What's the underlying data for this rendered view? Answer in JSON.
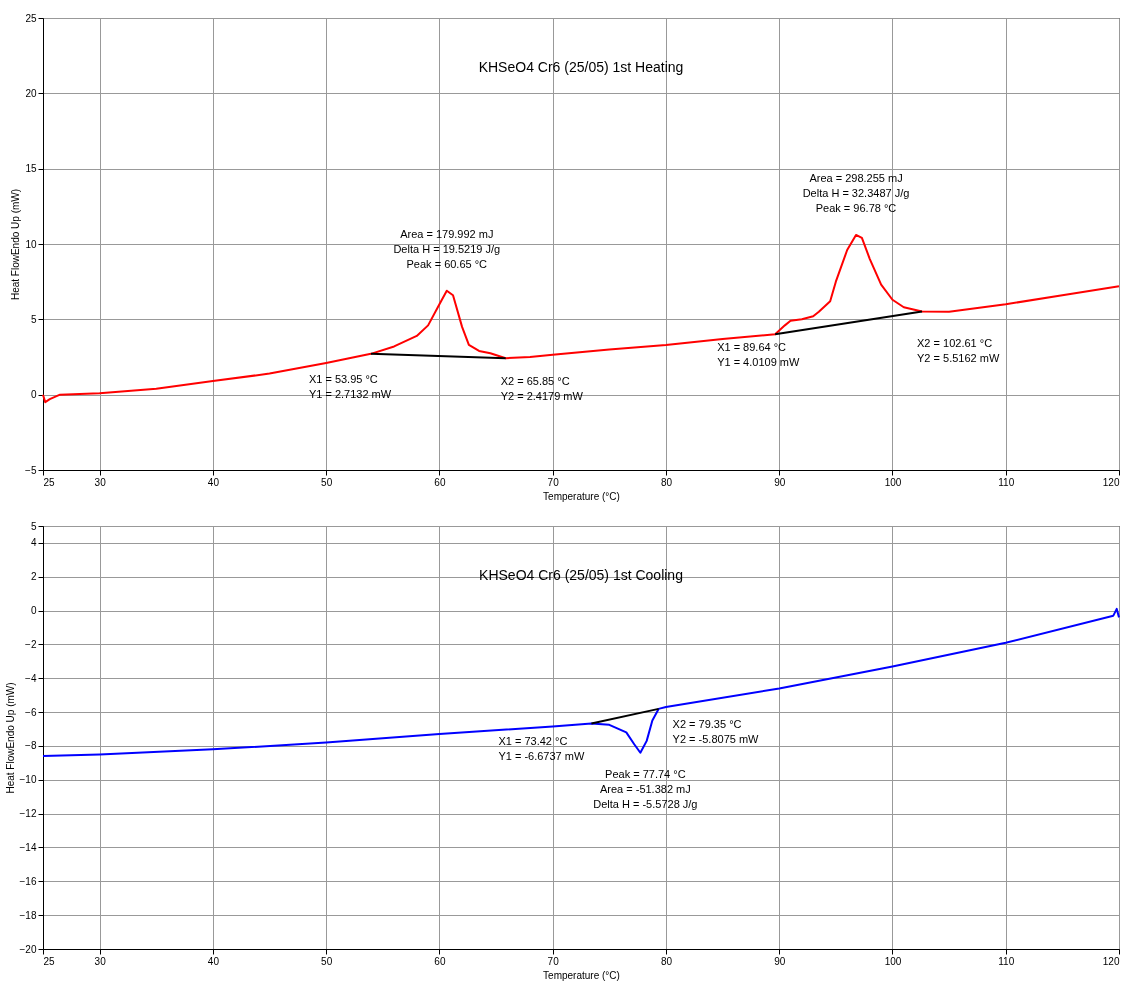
{
  "chart_data": [
    {
      "type": "line",
      "title": "KHSeO4 Cr6 (25/05) 1st Heating",
      "xlabel": "Temperature (°C)",
      "ylabel": "Heat FlowEndo Up (mW)",
      "xlim": [
        25,
        120
      ],
      "ylim": [
        -5,
        25
      ],
      "xticks": [
        25,
        30,
        40,
        50,
        60,
        70,
        80,
        90,
        100,
        110,
        120
      ],
      "yticks": [
        -5,
        0,
        5,
        10,
        15,
        20,
        25
      ],
      "grid": true,
      "series": [
        {
          "color": "#ff0000",
          "x": [
            25,
            25.2,
            25.6,
            26.5,
            30,
            35,
            40,
            45,
            50,
            53.95,
            56,
            58,
            59,
            60,
            60.65,
            61.2,
            62,
            62.6,
            63.5,
            64.5,
            65.85,
            68,
            70,
            75,
            80,
            85,
            89.64,
            90.5,
            91,
            92,
            93,
            93.5,
            94.5,
            95,
            96,
            96.78,
            97.3,
            98,
            99,
            100,
            101,
            102.61,
            105,
            110,
            115,
            120
          ],
          "values": [
            0,
            -0.5,
            -0.3,
            0,
            0.1,
            0.4,
            0.9,
            1.4,
            2.1,
            2.71,
            3.2,
            3.9,
            4.6,
            6,
            6.9,
            6.6,
            4.5,
            3.3,
            2.9,
            2.75,
            2.42,
            2.5,
            2.65,
            3,
            3.3,
            3.7,
            4.01,
            4.6,
            4.9,
            5,
            5.2,
            5.5,
            6.2,
            7.5,
            9.6,
            10.6,
            10.4,
            9,
            7.3,
            6.3,
            5.8,
            5.52,
            5.5,
            6,
            6.6,
            7.2
          ]
        },
        {
          "type": "line",
          "color": "#000000",
          "x": [
            53.95,
            65.85
          ],
          "values": [
            2.7132,
            2.4179
          ]
        },
        {
          "type": "line",
          "color": "#000000",
          "x": [
            89.64,
            102.61
          ],
          "values": [
            4.0109,
            5.5162
          ]
        }
      ],
      "annotations": [
        {
          "text": "Area = 179.992 mJ\nDelta H = 19.5219 J/g\nPeak = 60.65 °C",
          "x": 60.65,
          "y": 6.9
        },
        {
          "text": "X1 = 53.95 °C\nY1 = 2.7132 mW",
          "x": 53.95,
          "y": 2.7132
        },
        {
          "text": "X2 = 65.85 °C\nY2 = 2.4179 mW",
          "x": 65.85,
          "y": 2.4179
        },
        {
          "text": "Area = 298.255 mJ\nDelta H = 32.3487 J/g\nPeak = 96.78 °C",
          "x": 96.78,
          "y": 10.6
        },
        {
          "text": "X1 = 89.64 °C\nY1 = 4.0109 mW",
          "x": 89.64,
          "y": 4.0109
        },
        {
          "text": "X2 = 102.61 °C\nY2 = 5.5162 mW",
          "x": 102.61,
          "y": 5.5162
        }
      ]
    },
    {
      "type": "line",
      "title": "KHSeO4 Cr6 (25/05) 1st Cooling",
      "xlabel": "Temperature (°C)",
      "ylabel": "Heat FlowEndo Up (mW)",
      "xlim": [
        25,
        120
      ],
      "ylim": [
        -20,
        5
      ],
      "xticks": [
        25,
        30,
        40,
        50,
        60,
        70,
        80,
        90,
        100,
        110,
        120
      ],
      "yticks": [
        -20,
        -18,
        -16,
        -14,
        -12,
        -10,
        -8,
        -6,
        -4,
        -2,
        0,
        2,
        4,
        5
      ],
      "grid": true,
      "series": [
        {
          "color": "#0000ff",
          "x": [
            25,
            30,
            40,
            50,
            60,
            70,
            73.42,
            75,
            76.5,
            77.2,
            77.74,
            78.3,
            78.8,
            79.35,
            80,
            90,
            100,
            110,
            119.5,
            119.8,
            120
          ],
          "values": [
            -8.6,
            -8.5,
            -8.2,
            -7.8,
            -7.3,
            -6.85,
            -6.67,
            -6.75,
            -7.2,
            -7.9,
            -8.4,
            -7.7,
            -6.5,
            -5.81,
            -5.7,
            -4.6,
            -3.3,
            -1.9,
            -0.3,
            0.1,
            -0.4
          ]
        },
        {
          "type": "line",
          "color": "#000000",
          "x": [
            73.42,
            79.35
          ],
          "values": [
            -6.6737,
            -5.8075
          ]
        }
      ],
      "annotations": [
        {
          "text": "X1 = 73.42 °C\nY1 = -6.6737 mW",
          "x": 73.42,
          "y": -6.6737
        },
        {
          "text": "X2 = 79.35 °C\nY2 = -5.8075 mW",
          "x": 79.35,
          "y": -5.8075
        },
        {
          "text": "Peak = 77.74 °C\nArea = -51.382 mJ\nDelta H = -5.5728 J/g",
          "x": 77.74,
          "y": -8.4
        }
      ]
    }
  ]
}
